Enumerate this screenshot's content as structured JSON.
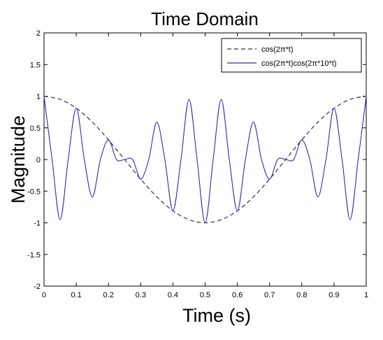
{
  "chart_data": {
    "type": "line",
    "title": "Time Domain",
    "xlabel": "Time (s)",
    "ylabel": "Magnitude",
    "xlim": [
      0,
      1
    ],
    "ylim": [
      -2,
      2
    ],
    "xticks": [
      0,
      0.1,
      0.2,
      0.3,
      0.4,
      0.5,
      0.6,
      0.7,
      0.8,
      0.9,
      1
    ],
    "xtick_labels": [
      "0",
      "0.1",
      "0.2",
      "0.3",
      "0.4",
      "0.5",
      "0.6",
      "0.7",
      "0.8",
      "0.9",
      "1"
    ],
    "yticks": [
      -2,
      -1.5,
      -1,
      -0.5,
      0,
      0.5,
      1,
      1.5,
      2
    ],
    "ytick_labels": [
      "-2",
      "-1.5",
      "-1",
      "-0.5",
      "0",
      "0.5",
      "1",
      "1.5",
      "2"
    ],
    "grid": false,
    "legend_position": "top-right",
    "series": [
      {
        "name": "cos(2π*t)",
        "color": "#333333",
        "style": "dashed",
        "x": [
          0,
          0.05,
          0.1,
          0.15,
          0.2,
          0.25,
          0.3,
          0.35,
          0.4,
          0.45,
          0.5,
          0.55,
          0.6,
          0.65,
          0.7,
          0.75,
          0.8,
          0.85,
          0.9,
          0.95,
          1
        ],
        "y": [
          1,
          0.95,
          0.81,
          0.59,
          0.31,
          0,
          -0.31,
          -0.59,
          -0.81,
          -0.95,
          -1,
          -0.95,
          -0.81,
          -0.59,
          -0.31,
          0,
          0.31,
          0.59,
          0.81,
          0.95,
          1
        ]
      },
      {
        "name": "cos(2π*t)cos(2π*10*t)",
        "color": "#2e2ea8",
        "style": "solid",
        "x": [
          0,
          0.025,
          0.05,
          0.075,
          0.1,
          0.125,
          0.15,
          0.175,
          0.2,
          0.225,
          0.25,
          0.275,
          0.3,
          0.325,
          0.35,
          0.375,
          0.4,
          0.425,
          0.45,
          0.475,
          0.5,
          0.525,
          0.55,
          0.575,
          0.6,
          0.625,
          0.65,
          0.675,
          0.7,
          0.725,
          0.75,
          0.775,
          0.8,
          0.825,
          0.85,
          0.875,
          0.9,
          0.925,
          0.95,
          0.975,
          1
        ],
        "y": [
          1,
          0,
          -0.95,
          0,
          0.81,
          0,
          -0.59,
          0,
          0.31,
          0,
          0,
          0,
          -0.31,
          0,
          0.59,
          0,
          -0.81,
          0,
          0.95,
          0,
          -1,
          0,
          0.95,
          0,
          -0.81,
          0,
          0.59,
          0,
          -0.31,
          0,
          0,
          0,
          0.31,
          0,
          -0.59,
          0,
          0.81,
          0,
          -0.95,
          0,
          1
        ]
      }
    ]
  }
}
